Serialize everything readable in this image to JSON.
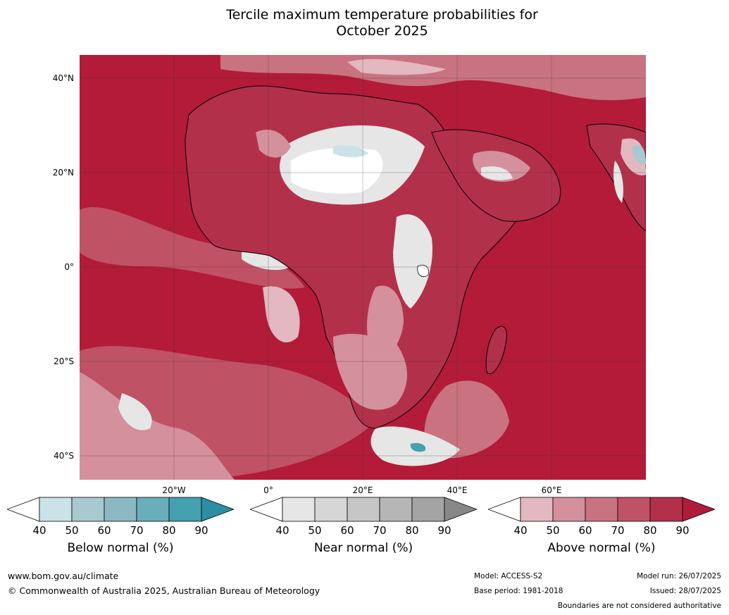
{
  "title_line1": "Tercile maximum temperature probabilities for",
  "title_line2": "October 2025",
  "lat_labels": [
    "40°N",
    "20°N",
    "0°",
    "20°S",
    "40°S"
  ],
  "lon_labels": [
    "20°W",
    "0°",
    "20°E",
    "40°E",
    "60°E"
  ],
  "colorbars": [
    {
      "caption": "Below normal (%)",
      "ticks": [
        "40",
        "50",
        "60",
        "70",
        "80",
        "90"
      ],
      "colors": [
        "#ffffff",
        "#cbe2e8",
        "#a8c9cf",
        "#8bb8c3",
        "#6aaebb",
        "#45a0b0",
        "#2c8ea2"
      ]
    },
    {
      "caption": "Near normal (%)",
      "ticks": [
        "40",
        "50",
        "60",
        "70",
        "80",
        "90"
      ],
      "colors": [
        "#ffffff",
        "#e6e6e6",
        "#d6d6d6",
        "#c6c6c6",
        "#b6b6b6",
        "#a4a4a4",
        "#888888"
      ]
    },
    {
      "caption": "Above normal (%)",
      "ticks": [
        "40",
        "50",
        "60",
        "70",
        "80",
        "90"
      ],
      "colors": [
        "#ffffff",
        "#e3b8c0",
        "#d4909c",
        "#c97380",
        "#c05266",
        "#b3304b",
        "#b01b3a"
      ]
    }
  ],
  "footer": {
    "url": "www.bom.gov.au/climate",
    "copyright": "© Commonwealth of Australia 2025, Australian Bureau of Meteorology",
    "model": "Model: ACCESS-S2",
    "base_period": "Base period: 1981-2018",
    "model_run": "Model run: 26/07/2025",
    "issued": "Issued: 28/07/2025",
    "disclaimer": "Boundaries are not considered authoritative"
  }
}
